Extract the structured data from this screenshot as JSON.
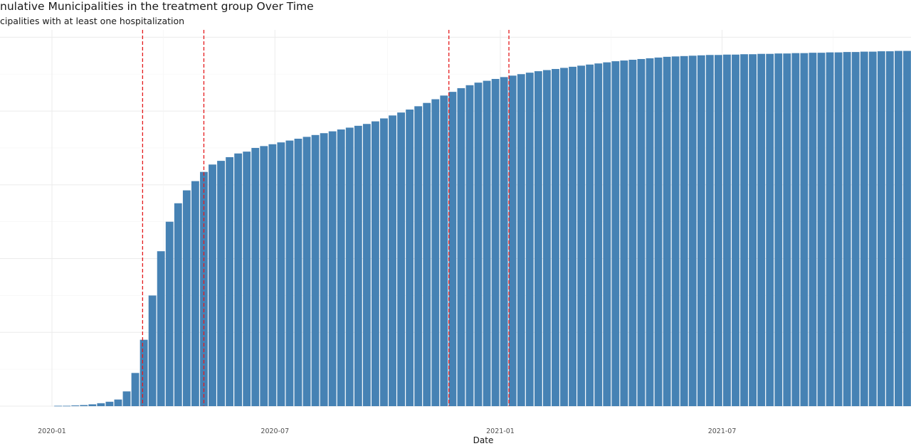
{
  "chart_data": {
    "type": "bar",
    "title": "nulative Municipalities in the treatment group Over Time",
    "subtitle": "cipalities with at least one hospitalization",
    "xlabel": "Date",
    "ylabel": "",
    "x_axis": {
      "start": "2020-01-06",
      "interval_days": 7,
      "tick_labels": [
        "2020-01",
        "2020-07",
        "2021-01",
        "2021-07"
      ],
      "tick_dates": [
        "2020-01-01",
        "2020-07-01",
        "2021-01-01",
        "2021-07-01"
      ]
    },
    "grid": true,
    "legend": "none",
    "bar_color": "#4682B4",
    "vline_color": "#E41A1C",
    "vlines": [
      "2020-03-15",
      "2020-05-04",
      "2020-11-20",
      "2021-01-08"
    ],
    "ylim": [
      0,
      1020
    ],
    "values": [
      1,
      1,
      2,
      3,
      5,
      8,
      12,
      18,
      40,
      90,
      180,
      300,
      420,
      500,
      550,
      585,
      610,
      635,
      655,
      665,
      675,
      685,
      690,
      700,
      705,
      710,
      715,
      720,
      725,
      730,
      735,
      740,
      745,
      750,
      755,
      760,
      765,
      772,
      780,
      788,
      796,
      804,
      813,
      822,
      832,
      842,
      852,
      862,
      870,
      877,
      882,
      887,
      892,
      896,
      900,
      904,
      908,
      911,
      914,
      917,
      920,
      923,
      926,
      929,
      932,
      935,
      937,
      939,
      941,
      943,
      945,
      947,
      948,
      949,
      950,
      951,
      952,
      952,
      953,
      953,
      954,
      954,
      955,
      955,
      956,
      956,
      957,
      957,
      958,
      958,
      959,
      959,
      960,
      960,
      961,
      961,
      962,
      962,
      963,
      963,
      964,
      965,
      967,
      969,
      971
    ]
  }
}
